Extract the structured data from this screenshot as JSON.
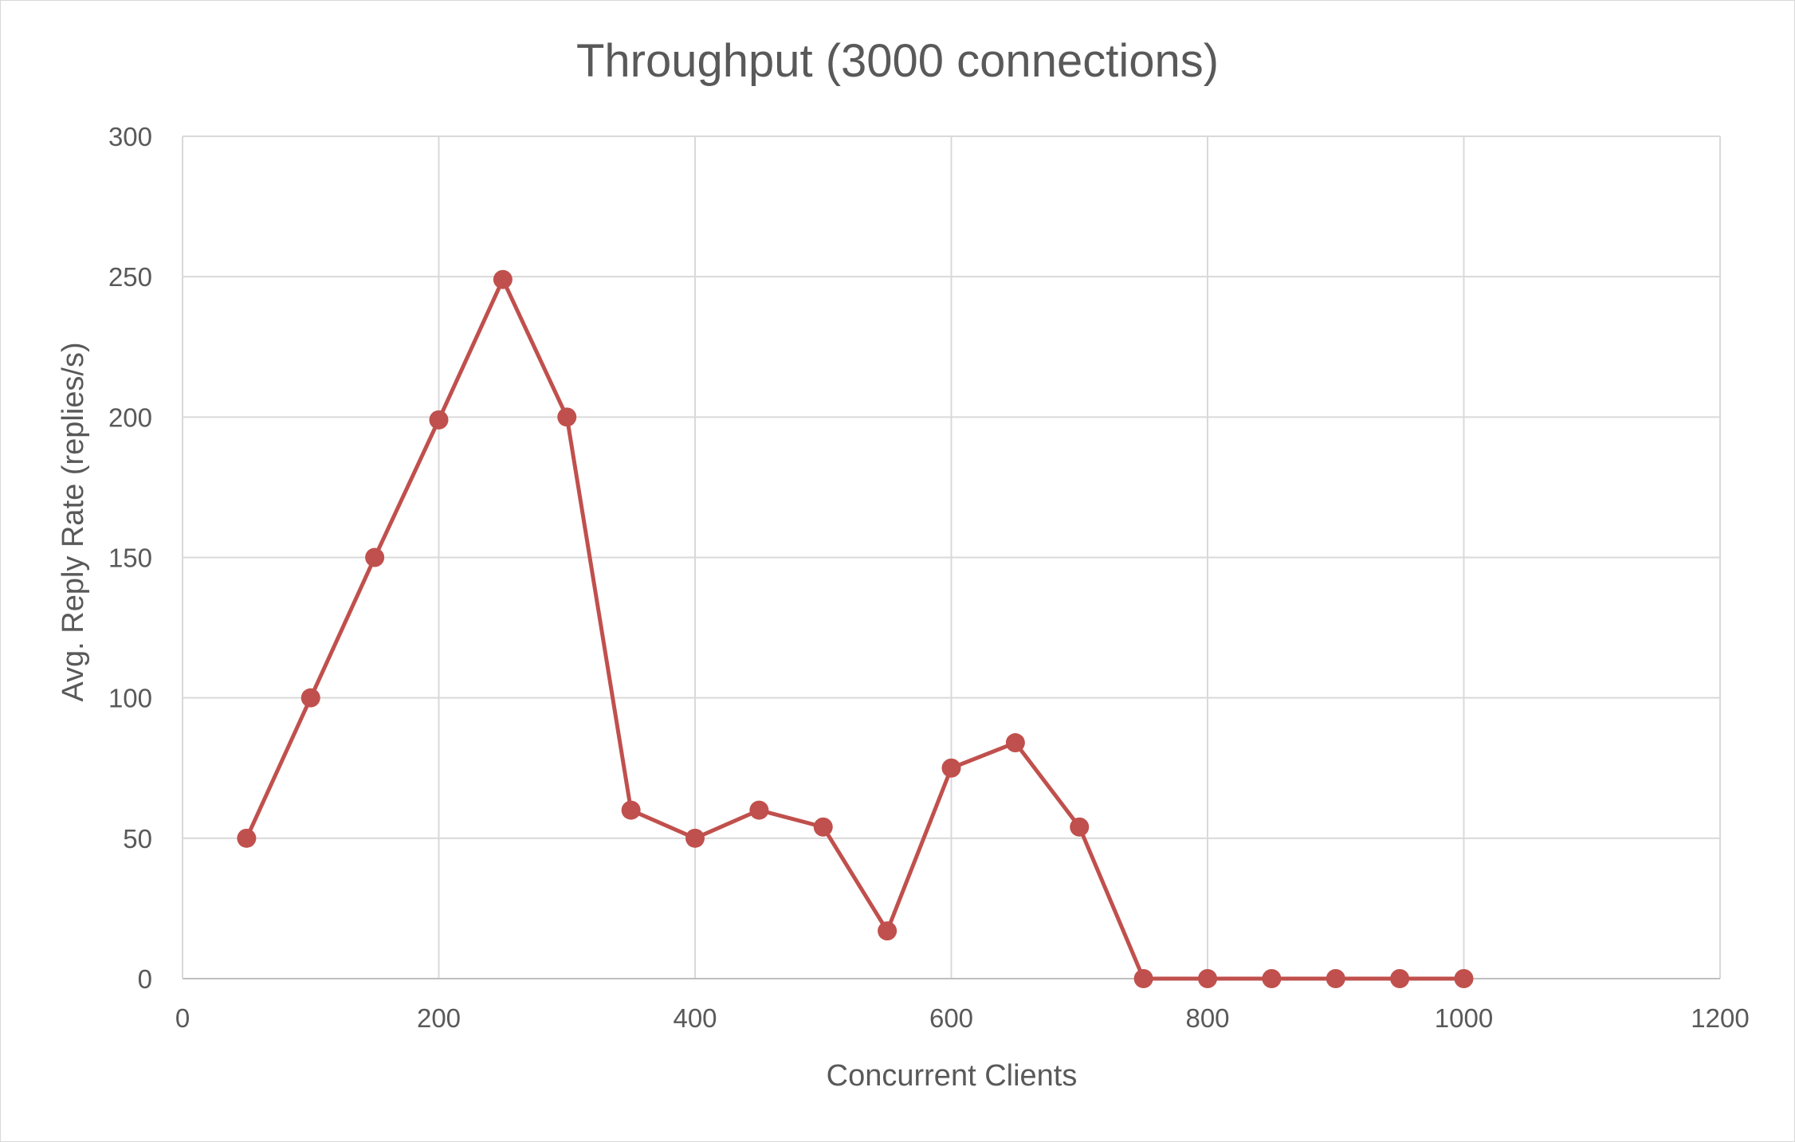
{
  "chart_data": {
    "type": "line",
    "title": "Throughput (3000 connections)",
    "xlabel": "Concurrent Clients",
    "ylabel": "Avg. Reply Rate (replies/s)",
    "xlim": [
      0,
      1200
    ],
    "ylim": [
      0,
      300
    ],
    "x_ticks": [
      0,
      200,
      400,
      600,
      800,
      1000,
      1200
    ],
    "y_ticks": [
      0,
      50,
      100,
      150,
      200,
      250,
      300
    ],
    "grid": true,
    "legend": "none",
    "series": [
      {
        "color": "#c0504d",
        "marker": "circle",
        "x": [
          50,
          100,
          150,
          200,
          250,
          300,
          350,
          400,
          450,
          500,
          550,
          600,
          650,
          700,
          750,
          800,
          850,
          900,
          950,
          1000
        ],
        "y": [
          50,
          100,
          150,
          199,
          249,
          200,
          60,
          50,
          60,
          54,
          17,
          75,
          84,
          54,
          0,
          0,
          0,
          0,
          0,
          0
        ]
      }
    ]
  }
}
